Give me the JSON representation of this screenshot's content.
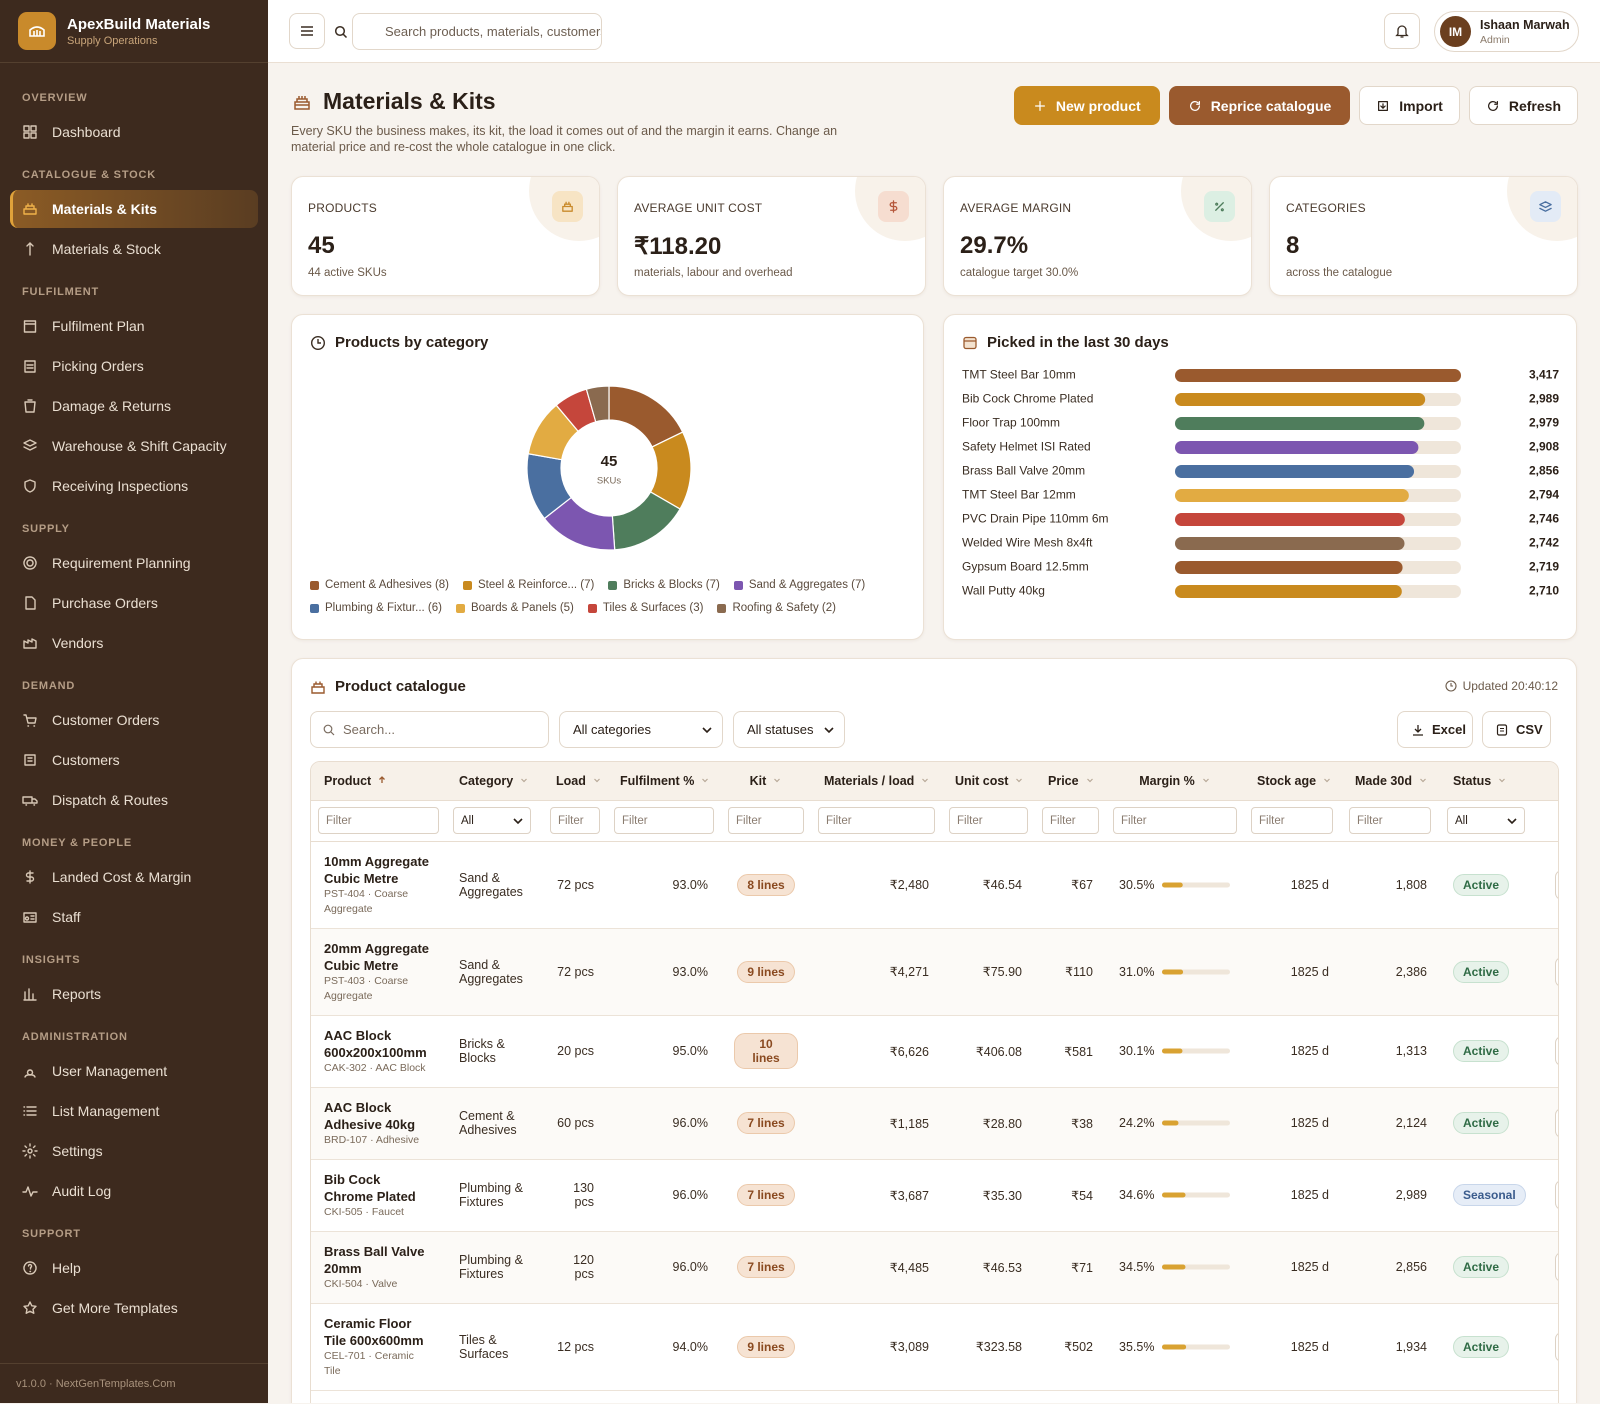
{
  "sidebar": {
    "brand": "ApexBuild Materials",
    "tagline": "Supply Operations",
    "sections": [
      {
        "label": "OVERVIEW",
        "items": [
          {
            "label": "Dashboard"
          }
        ]
      },
      {
        "label": "CATALOGUE & STOCK",
        "items": [
          {
            "label": "Materials & Kits",
            "active": true
          },
          {
            "label": "Materials & Stock"
          }
        ]
      },
      {
        "label": "FULFILMENT",
        "items": [
          {
            "label": "Fulfilment Plan"
          },
          {
            "label": "Picking Orders"
          },
          {
            "label": "Damage & Returns"
          },
          {
            "label": "Warehouse & Shift Capacity"
          },
          {
            "label": "Receiving Inspections"
          }
        ]
      },
      {
        "label": "SUPPLY",
        "items": [
          {
            "label": "Requirement Planning"
          },
          {
            "label": "Purchase Orders"
          },
          {
            "label": "Vendors"
          }
        ]
      },
      {
        "label": "DEMAND",
        "items": [
          {
            "label": "Customer Orders"
          },
          {
            "label": "Customers"
          },
          {
            "label": "Dispatch & Routes"
          }
        ]
      },
      {
        "label": "MONEY & PEOPLE",
        "items": [
          {
            "label": "Landed Cost & Margin"
          },
          {
            "label": "Staff"
          }
        ]
      },
      {
        "label": "INSIGHTS",
        "items": [
          {
            "label": "Reports"
          }
        ]
      },
      {
        "label": "ADMINISTRATION",
        "items": [
          {
            "label": "User Management"
          },
          {
            "label": "List Management"
          },
          {
            "label": "Settings"
          },
          {
            "label": "Audit Log"
          }
        ]
      },
      {
        "label": "SUPPORT",
        "items": [
          {
            "label": "Help"
          },
          {
            "label": "Get More Templates"
          }
        ]
      }
    ],
    "footer": "v1.0.0 · NextGenTemplates.Com"
  },
  "topbar": {
    "search_placeholder": "Search products, materials, customers",
    "user_initials": "IM",
    "user_name": "Ishaan Marwah",
    "user_role": "Admin"
  },
  "header": {
    "title": "Materials & Kits",
    "description": "Every SKU the business makes, its kit, the load it comes out of and the margin it earns. Change an material price and re-cost the whole catalogue in one click.",
    "buttons": [
      "New product",
      "Reprice catalogue",
      "Import",
      "Refresh"
    ]
  },
  "kpis": [
    {
      "label": "PRODUCTS",
      "value": "45",
      "note": "44 active SKUs"
    },
    {
      "label": "AVERAGE UNIT COST",
      "value": "₹118.20",
      "note": "materials, labour and overhead"
    },
    {
      "label": "AVERAGE MARGIN",
      "value": "29.7%",
      "note": "catalogue target 30.0%"
    },
    {
      "label": "CATEGORIES",
      "value": "8",
      "note": "across the catalogue"
    }
  ],
  "chart_data": [
    {
      "type": "donut",
      "title": "Products by category",
      "categories": [
        "Cement & Adhesives (8)",
        "Steel & Reinforce... (7)",
        "Bricks & Blocks (7)",
        "Sand & Aggregates (7)",
        "Plumbing & Fixtur... (6)",
        "Boards & Panels (5)",
        "Tiles & Surfaces (3)",
        "Roofing & Safety (2)"
      ],
      "values": [
        8,
        7,
        7,
        7,
        6,
        5,
        3,
        2
      ],
      "colors": [
        "#9a5a2e",
        "#c98a1e",
        "#4f7d5c",
        "#7c56b0",
        "#4a6fa0",
        "#e2ab42",
        "#c5463b",
        "#8a6a4f"
      ],
      "center_value": 45,
      "center_label": "SKUs"
    },
    {
      "type": "bar",
      "orientation": "horizontal",
      "title": "Picked in the last 30 days",
      "categories": [
        "TMT Steel Bar 10mm",
        "Bib Cock Chrome Plated",
        "Floor Trap 100mm",
        "Safety Helmet ISI Rated",
        "Brass Ball Valve 20mm",
        "TMT Steel Bar 12mm",
        "PVC Drain Pipe 110mm 6m",
        "Welded Wire Mesh 8x4ft",
        "Gypsum Board 12.5mm",
        "Wall Putty 40kg"
      ],
      "values": [
        3417,
        2989,
        2979,
        2908,
        2856,
        2794,
        2746,
        2742,
        2719,
        2710
      ],
      "value_labels": [
        "3,417",
        "2,989",
        "2,979",
        "2,908",
        "2,856",
        "2,794",
        "2,746",
        "2,742",
        "2,719",
        "2,710"
      ],
      "colors": [
        "#9a5a2e",
        "#c98a1e",
        "#4f7d5c",
        "#7c56b0",
        "#4a6fa0",
        "#e2ab42",
        "#c5463b",
        "#8a6a4f",
        "#9a5a2e",
        "#c98a1e"
      ],
      "xlim": [
        0,
        3417
      ]
    }
  ],
  "catalogue": {
    "title": "Product catalogue",
    "updated": "Updated 20:40:12",
    "search_placeholder": "Search...",
    "category_select": "All categories",
    "status_select": "All statuses",
    "export_buttons": [
      "Excel",
      "CSV"
    ],
    "columns": [
      "Product",
      "Category",
      "Load",
      "Fulfilment %",
      "Kit",
      "Materials / load",
      "Unit cost",
      "Price",
      "Margin %",
      "Stock age",
      "Made 30d",
      "Status"
    ],
    "filters": [
      "Filter",
      "All",
      "Filter",
      "Filter",
      "Filter",
      "Filter",
      "Filter",
      "Filter",
      "Filter",
      "Filter",
      "Filter",
      "All"
    ],
    "margin_scale": [
      0,
      100
    ],
    "rows": [
      {
        "name": "10mm Aggregate Cubic Metre",
        "code": "PST-404 · Coarse Aggregate",
        "category": "Sand & Aggregates",
        "load": "72 pcs",
        "fulfilment": "93.0%",
        "kit": "8 lines",
        "materials": "₹2,480",
        "unit_cost": "₹46.54",
        "price": "₹67",
        "margin": 30.5,
        "margin_label": "30.5%",
        "stock_age": "1825 d",
        "made": "1,808",
        "status": "Active"
      },
      {
        "name": "20mm Aggregate Cubic Metre",
        "code": "PST-403 · Coarse Aggregate",
        "category": "Sand & Aggregates",
        "load": "72 pcs",
        "fulfilment": "93.0%",
        "kit": "9 lines",
        "materials": "₹4,271",
        "unit_cost": "₹75.90",
        "price": "₹110",
        "margin": 31.0,
        "margin_label": "31.0%",
        "stock_age": "1825 d",
        "made": "2,386",
        "status": "Active"
      },
      {
        "name": "AAC Block 600x200x100mm",
        "code": "CAK-302 · AAC Block",
        "category": "Bricks & Blocks",
        "load": "20 pcs",
        "fulfilment": "95.0%",
        "kit": "10 lines",
        "materials": "₹6,626",
        "unit_cost": "₹406.08",
        "price": "₹581",
        "margin": 30.1,
        "margin_label": "30.1%",
        "stock_age": "1825 d",
        "made": "1,313",
        "status": "Active"
      },
      {
        "name": "AAC Block Adhesive 40kg",
        "code": "BRD-107 · Adhesive",
        "category": "Cement & Adhesives",
        "load": "60 pcs",
        "fulfilment": "96.0%",
        "kit": "7 lines",
        "materials": "₹1,185",
        "unit_cost": "₹28.80",
        "price": "₹38",
        "margin": 24.2,
        "margin_label": "24.2%",
        "stock_age": "1825 d",
        "made": "2,124",
        "status": "Active"
      },
      {
        "name": "Bib Cock Chrome Plated",
        "code": "CKI-505 · Faucet",
        "category": "Plumbing & Fixtures",
        "load": "130 pcs",
        "fulfilment": "96.0%",
        "kit": "7 lines",
        "materials": "₹3,687",
        "unit_cost": "₹35.30",
        "price": "₹54",
        "margin": 34.6,
        "margin_label": "34.6%",
        "stock_age": "1825 d",
        "made": "2,989",
        "status": "Seasonal"
      },
      {
        "name": "Brass Ball Valve 20mm",
        "code": "CKI-504 · Valve",
        "category": "Plumbing & Fixtures",
        "load": "120 pcs",
        "fulfilment": "96.0%",
        "kit": "7 lines",
        "materials": "₹4,485",
        "unit_cost": "₹46.53",
        "price": "₹71",
        "margin": 34.5,
        "margin_label": "34.5%",
        "stock_age": "1825 d",
        "made": "2,856",
        "status": "Active"
      },
      {
        "name": "Ceramic Floor Tile 600x600mm",
        "code": "CEL-701 · Ceramic Tile",
        "category": "Tiles & Surfaces",
        "load": "12 pcs",
        "fulfilment": "94.0%",
        "kit": "9 lines",
        "materials": "₹3,089",
        "unit_cost": "₹323.58",
        "price": "₹502",
        "margin": 35.5,
        "margin_label": "35.5%",
        "stock_age": "1825 d",
        "made": "1,934",
        "status": "Active"
      }
    ]
  }
}
